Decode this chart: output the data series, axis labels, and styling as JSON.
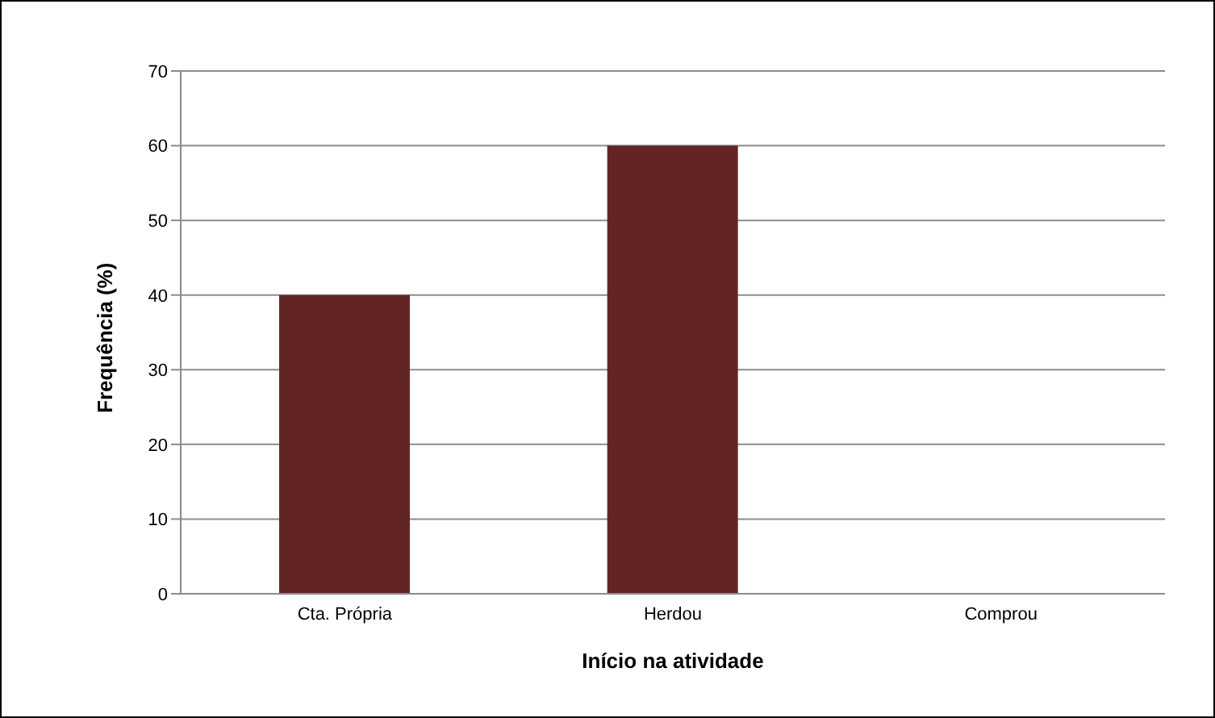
{
  "chart_data": {
    "type": "bar",
    "xlabel": "Início na atividade",
    "ylabel": "Frequência (%)",
    "categories": [
      "Cta. Própria",
      "Herdou",
      "Comprou"
    ],
    "values": [
      40,
      60,
      0
    ],
    "color": "#632523",
    "ylim": [
      0,
      70
    ],
    "yticks": [
      0,
      10,
      20,
      30,
      40,
      50,
      60,
      70
    ],
    "grid": "y",
    "legend": false
  }
}
